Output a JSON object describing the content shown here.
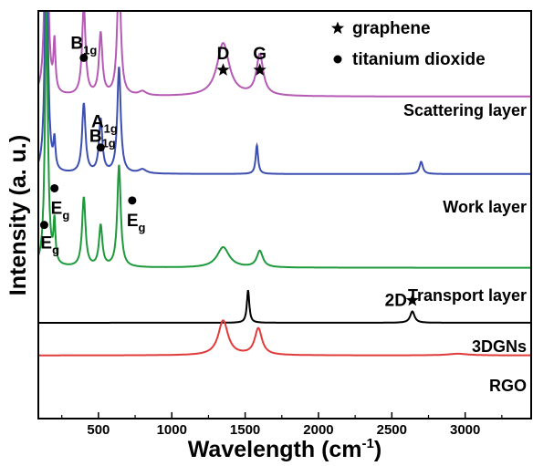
{
  "chart_data": {
    "type": "line",
    "xlabel": "Wavelength (cm",
    "xlabel_sup": "-1",
    "xlabel_tail": ")",
    "ylabel": "Intensity (a. u.)",
    "xlim": [
      90,
      3450
    ],
    "x_ticks": [
      500,
      1000,
      1500,
      2000,
      2500,
      3000
    ],
    "x_tick_labels": [
      "500",
      "1000",
      "1500",
      "2000",
      "2500",
      "3000"
    ],
    "grid": false,
    "legend_position": "top-right",
    "legend": [
      {
        "marker": "star",
        "label": "graphene"
      },
      {
        "marker": "dot",
        "label": "titanium dioxide"
      }
    ],
    "series": [
      {
        "name": "Scattering layer",
        "color": "#b55ab5",
        "baseline": 0.79,
        "peaks": [
          [
            145,
            0.62,
            12
          ],
          [
            200,
            0.12,
            8
          ],
          [
            400,
            0.22,
            14
          ],
          [
            515,
            0.15,
            14
          ],
          [
            640,
            0.32,
            14
          ],
          [
            800,
            0.01,
            30
          ],
          [
            1350,
            0.13,
            50
          ],
          [
            1600,
            0.1,
            28
          ]
        ]
      },
      {
        "name": "Work layer",
        "color": "#3d4fb0",
        "baseline": 0.6,
        "peaks": [
          [
            145,
            0.62,
            12
          ],
          [
            200,
            0.07,
            8
          ],
          [
            400,
            0.17,
            14
          ],
          [
            515,
            0.13,
            14
          ],
          [
            640,
            0.26,
            14
          ],
          [
            800,
            0.01,
            30
          ],
          [
            1580,
            0.07,
            10
          ],
          [
            2700,
            0.03,
            14
          ]
        ]
      },
      {
        "name": "Transport layer",
        "color": "#1e9a3c",
        "baseline": 0.37,
        "peaks": [
          [
            145,
            0.63,
            12
          ],
          [
            200,
            0.1,
            8
          ],
          [
            400,
            0.17,
            14
          ],
          [
            515,
            0.1,
            14
          ],
          [
            640,
            0.25,
            14
          ],
          [
            1350,
            0.05,
            50
          ],
          [
            1600,
            0.04,
            25
          ]
        ]
      },
      {
        "name": "3DGNs",
        "color": "#000000",
        "baseline": 0.235,
        "peaks": [
          [
            1520,
            0.08,
            10
          ],
          [
            2640,
            0.028,
            18
          ]
        ]
      },
      {
        "name": "RGO",
        "color": "#e03c3c",
        "baseline": 0.155,
        "peaks": [
          [
            1350,
            0.085,
            40
          ],
          [
            1590,
            0.065,
            30
          ],
          [
            2950,
            0.004,
            80
          ]
        ]
      }
    ],
    "peak_labels": [
      {
        "marker": "dot",
        "label": "B",
        "sub": "1g",
        "x": 400,
        "y": 0.885
      },
      {
        "marker": "dot",
        "label": "B",
        "sub": "1g",
        "x": 515,
        "y": 0.665
      },
      {
        "marker": "dot",
        "label": "E",
        "sub": "g",
        "x": 200,
        "y": 0.565
      },
      {
        "marker": "dot",
        "label": "E",
        "sub": "g",
        "x": 730,
        "y": 0.535
      },
      {
        "marker": "dot",
        "label": "E",
        "sub": "g",
        "x": 130,
        "y": 0.475
      },
      {
        "marker": "",
        "label": "A",
        "sub": "1g",
        "x": 640,
        "y": 0.715
      },
      {
        "marker": "star",
        "label": "D",
        "sub": "",
        "x": 1350,
        "y": 0.855
      },
      {
        "marker": "star",
        "label": "G",
        "sub": "",
        "x": 1600,
        "y": 0.855
      },
      {
        "marker": "star",
        "label": "2D",
        "sub": "",
        "x": 2640,
        "y": 0.29
      }
    ]
  }
}
